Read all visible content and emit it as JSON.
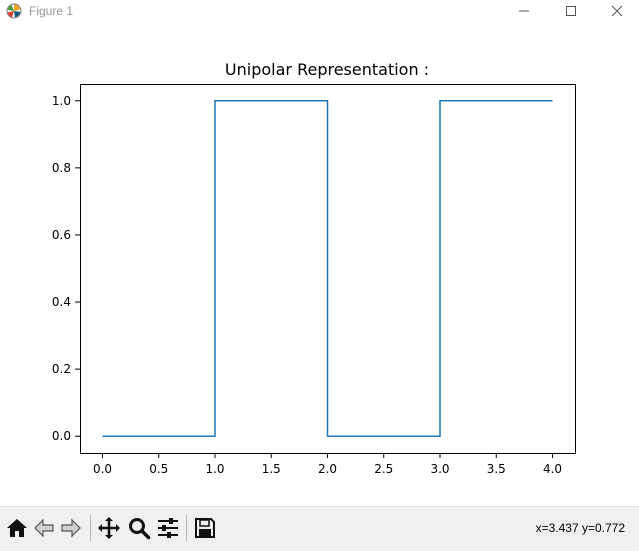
{
  "window": {
    "title": "Figure 1",
    "icons": [
      "matplotlib-app-icon",
      "minimize-icon",
      "maximize-icon",
      "close-icon"
    ]
  },
  "toolbar": {
    "buttons": [
      "home-icon",
      "back-arrow-icon",
      "forward-arrow-icon",
      "pan-icon",
      "zoom-icon",
      "configure-subplots-icon",
      "save-icon"
    ],
    "coords": "x=3.437 y=0.772"
  },
  "colors": {
    "line": "#1f77b4",
    "axes": "#000000",
    "toolbar_bg": "#f0f0f0"
  },
  "chart_data": {
    "type": "line",
    "drawstyle": "steps-post",
    "title": "Unipolar Representation :",
    "x": [
      0,
      1,
      2,
      3,
      4
    ],
    "y": [
      0,
      1,
      0,
      1,
      1
    ],
    "xlim": [
      -0.2,
      4.2
    ],
    "ylim": [
      -0.05,
      1.05
    ],
    "xticks": [
      "0.0",
      "0.5",
      "1.0",
      "1.5",
      "2.0",
      "2.5",
      "3.0",
      "3.5",
      "4.0"
    ],
    "yticks": [
      "0.0",
      "0.2",
      "0.4",
      "0.6",
      "0.8",
      "1.0"
    ],
    "xlabel": "",
    "ylabel": "",
    "grid": false,
    "legend": "none"
  }
}
